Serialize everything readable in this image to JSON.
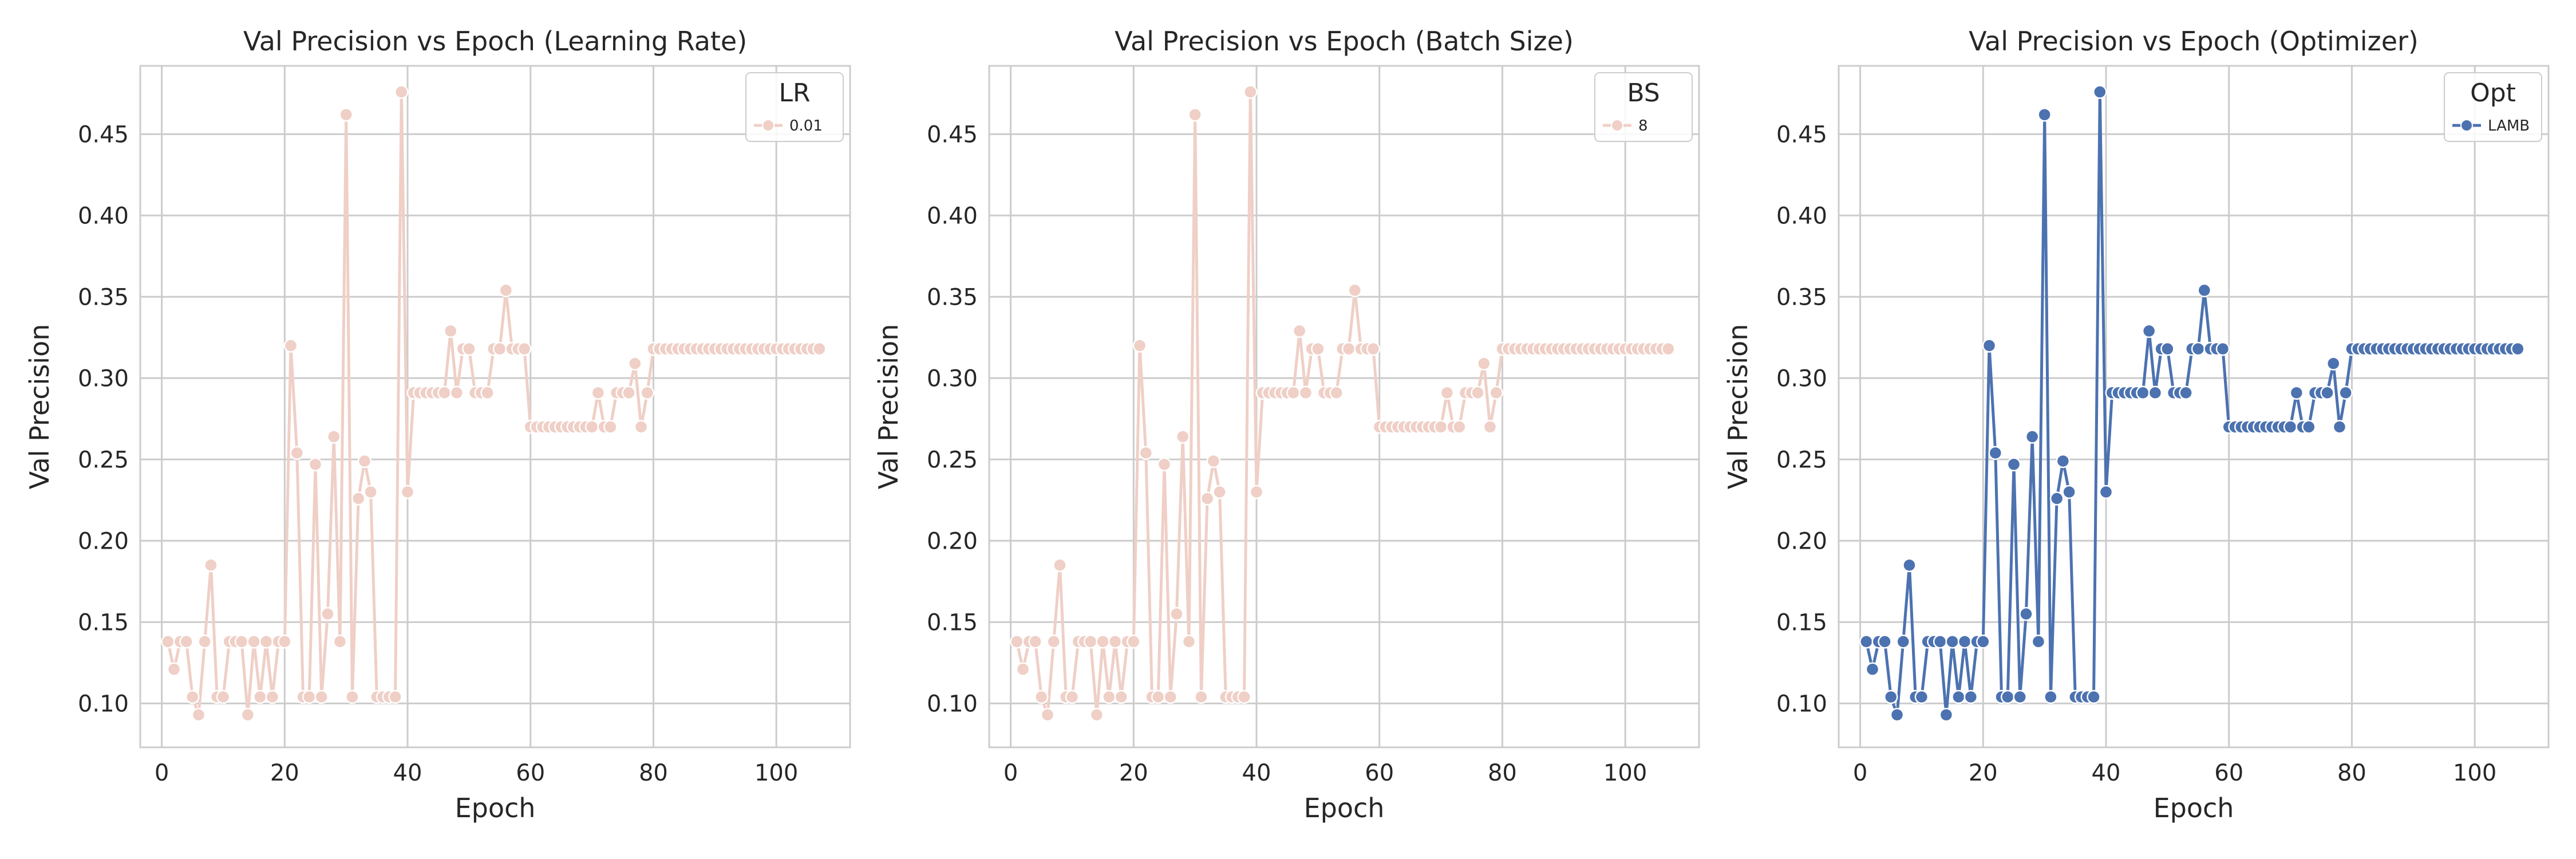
{
  "figure": {
    "grid_color": "#cccccc",
    "spine_color": "#cccccc",
    "text_color": "#262626"
  },
  "chart_data": [
    {
      "type": "line",
      "title": "Val Precision vs Epoch (Learning Rate)",
      "xlabel": "Epoch",
      "ylabel": "Val Precision",
      "xlim": [
        -3.5,
        112
      ],
      "ylim": [
        0.073,
        0.492
      ],
      "xticks": [
        0,
        20,
        40,
        60,
        80,
        100
      ],
      "yticks": [
        0.1,
        0.15,
        0.2,
        0.25,
        0.3,
        0.35,
        0.4,
        0.45
      ],
      "grid": true,
      "legend": {
        "title": "LR",
        "location": "top-right"
      },
      "series": [
        {
          "name": "0.01",
          "color": "#efcfc6",
          "marker": "circle"
        }
      ]
    },
    {
      "type": "line",
      "title": "Val Precision vs Epoch (Batch Size)",
      "xlabel": "Epoch",
      "ylabel": "Val Precision",
      "xlim": [
        -3.5,
        112
      ],
      "ylim": [
        0.073,
        0.492
      ],
      "xticks": [
        0,
        20,
        40,
        60,
        80,
        100
      ],
      "yticks": [
        0.1,
        0.15,
        0.2,
        0.25,
        0.3,
        0.35,
        0.4,
        0.45
      ],
      "grid": true,
      "legend": {
        "title": "BS",
        "location": "top-right"
      },
      "series": [
        {
          "name": "8",
          "color": "#efcfc6",
          "marker": "circle"
        }
      ]
    },
    {
      "type": "line",
      "title": "Val Precision vs Epoch (Optimizer)",
      "xlabel": "Epoch",
      "ylabel": "Val Precision",
      "xlim": [
        -3.5,
        112
      ],
      "ylim": [
        0.073,
        0.492
      ],
      "xticks": [
        0,
        20,
        40,
        60,
        80,
        100
      ],
      "yticks": [
        0.1,
        0.15,
        0.2,
        0.25,
        0.3,
        0.35,
        0.4,
        0.45
      ],
      "grid": true,
      "legend": {
        "title": "Opt",
        "location": "top-right"
      },
      "series": [
        {
          "name": "LAMB",
          "color": "#4c72b0",
          "marker": "circle"
        }
      ]
    }
  ],
  "shared_series": {
    "x": [
      1,
      2,
      3,
      4,
      5,
      6,
      7,
      8,
      9,
      10,
      11,
      12,
      13,
      14,
      15,
      16,
      17,
      18,
      19,
      20,
      21,
      22,
      23,
      24,
      25,
      26,
      27,
      28,
      29,
      30,
      31,
      32,
      33,
      34,
      35,
      36,
      37,
      38,
      39,
      40,
      41,
      42,
      43,
      44,
      45,
      46,
      47,
      48,
      49,
      50,
      51,
      52,
      53,
      54,
      55,
      56,
      57,
      58,
      59,
      60,
      61,
      62,
      63,
      64,
      65,
      66,
      67,
      68,
      69,
      70,
      71,
      72,
      73,
      74,
      75,
      76,
      77,
      78,
      79,
      80,
      81,
      82,
      83,
      84,
      85,
      86,
      87,
      88,
      89,
      90,
      91,
      92,
      93,
      94,
      95,
      96,
      97,
      98,
      99,
      100,
      101,
      102,
      103,
      104,
      105,
      106,
      107
    ],
    "y": [
      0.138,
      0.121,
      0.138,
      0.138,
      0.104,
      0.093,
      0.138,
      0.185,
      0.104,
      0.104,
      0.138,
      0.138,
      0.138,
      0.093,
      0.138,
      0.104,
      0.138,
      0.104,
      0.138,
      0.138,
      0.32,
      0.254,
      0.104,
      0.104,
      0.247,
      0.104,
      0.155,
      0.264,
      0.138,
      0.462,
      0.104,
      0.226,
      0.249,
      0.23,
      0.104,
      0.104,
      0.104,
      0.104,
      0.476,
      0.23,
      0.291,
      0.291,
      0.291,
      0.291,
      0.291,
      0.291,
      0.329,
      0.291,
      0.318,
      0.318,
      0.291,
      0.291,
      0.291,
      0.318,
      0.318,
      0.354,
      0.318,
      0.318,
      0.318,
      0.27,
      0.27,
      0.27,
      0.27,
      0.27,
      0.27,
      0.27,
      0.27,
      0.27,
      0.27,
      0.27,
      0.291,
      0.27,
      0.27,
      0.291,
      0.291,
      0.291,
      0.309,
      0.27,
      0.291,
      0.318,
      0.318,
      0.318,
      0.318,
      0.318,
      0.318,
      0.318,
      0.318,
      0.318,
      0.318,
      0.318,
      0.318,
      0.318,
      0.318,
      0.318,
      0.318,
      0.318,
      0.318,
      0.318,
      0.318,
      0.318,
      0.318,
      0.318,
      0.318,
      0.318,
      0.318,
      0.318,
      0.318
    ]
  }
}
